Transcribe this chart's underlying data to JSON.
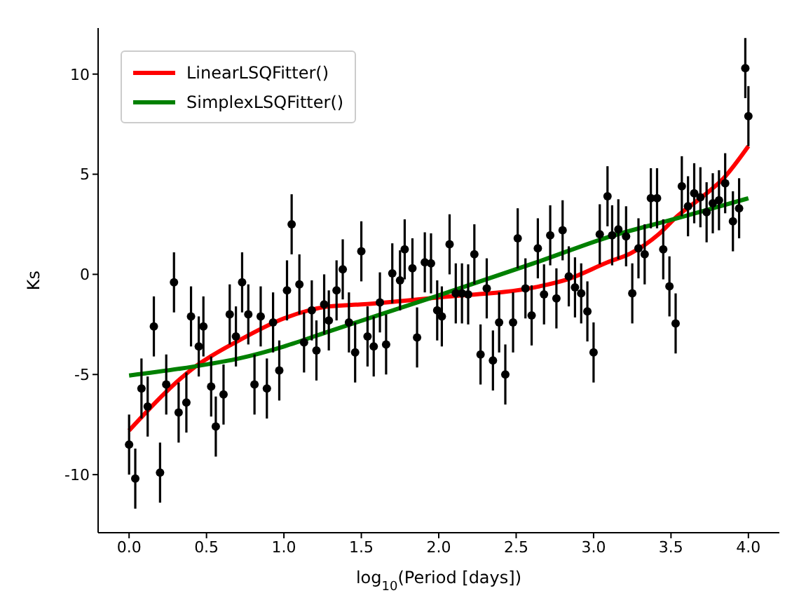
{
  "chart_data": {
    "type": "scatter",
    "xlabel": "log$_{10}$(Period [days])",
    "ylabel": "Ks",
    "xlim": [
      -0.2,
      4.2
    ],
    "ylim": [
      -12.9,
      12.3
    ],
    "xticks": [
      {
        "value": 0,
        "label": "0.0"
      },
      {
        "value": 0.5,
        "label": "0.5"
      },
      {
        "value": 1,
        "label": "1.0"
      },
      {
        "value": 1.5,
        "label": "1.5"
      },
      {
        "value": 2,
        "label": "2.0"
      },
      {
        "value": 2.5,
        "label": "2.5"
      },
      {
        "value": 3,
        "label": "3.0"
      },
      {
        "value": 3.5,
        "label": "3.5"
      },
      {
        "value": 4,
        "label": "4.0"
      }
    ],
    "yticks": [
      -10,
      -5,
      0,
      5,
      10
    ],
    "grid": false,
    "legend": "top left",
    "series": [
      {
        "marker": "circle",
        "color": "#000000",
        "x": [
          0.0,
          0.04,
          0.08,
          0.12,
          0.16,
          0.2,
          0.24,
          0.29,
          0.32,
          0.37,
          0.4,
          0.45,
          0.48,
          0.53,
          0.56,
          0.61,
          0.65,
          0.69,
          0.73,
          0.77,
          0.81,
          0.85,
          0.89,
          0.93,
          0.97,
          1.02,
          1.05,
          1.1,
          1.13,
          1.18,
          1.21,
          1.26,
          1.29,
          1.34,
          1.38,
          1.42,
          1.46,
          1.5,
          1.54,
          1.58,
          1.62,
          1.66,
          1.7,
          1.75,
          1.78,
          1.83,
          1.86,
          1.91,
          1.95,
          1.99,
          2.02,
          2.07,
          2.11,
          2.15,
          2.19,
          2.23,
          2.27,
          2.31,
          2.35,
          2.39,
          2.43,
          2.48,
          2.51,
          2.56,
          2.6,
          2.64,
          2.68,
          2.72,
          2.76,
          2.8,
          2.84,
          2.88,
          2.92,
          2.96,
          3.0,
          3.04,
          3.09,
          3.12,
          3.16,
          3.21,
          3.25,
          3.29,
          3.33,
          3.37,
          3.41,
          3.45,
          3.49,
          3.53,
          3.57,
          3.61,
          3.65,
          3.69,
          3.73,
          3.77,
          3.81,
          3.85,
          3.9,
          3.94,
          3.98,
          4.0
        ],
        "values": [
          -8.5,
          -10.2,
          -5.7,
          -6.6,
          -2.6,
          -9.9,
          -5.5,
          -0.4,
          -6.9,
          -6.4,
          -2.1,
          -3.6,
          -2.6,
          -5.6,
          -7.6,
          -6.0,
          -2.0,
          -3.1,
          -0.4,
          -2.0,
          -5.5,
          -2.1,
          -5.7,
          -2.4,
          -4.8,
          -0.8,
          2.5,
          -0.5,
          -3.4,
          -1.8,
          -3.8,
          -1.5,
          -2.3,
          -0.8,
          0.25,
          -2.4,
          -3.9,
          1.15,
          -3.1,
          -3.6,
          -1.4,
          -3.5,
          0.05,
          -0.3,
          1.25,
          0.3,
          -3.15,
          0.6,
          0.55,
          -1.8,
          -2.1,
          1.5,
          -0.95,
          -0.95,
          -1.0,
          1.0,
          -4.0,
          -0.7,
          -4.3,
          -2.4,
          -5.0,
          -2.4,
          1.8,
          -0.7,
          -2.05,
          1.3,
          -1.0,
          1.95,
          -1.2,
          2.2,
          -0.1,
          -0.65,
          -0.95,
          -1.85,
          -3.9,
          2.0,
          3.9,
          1.95,
          2.25,
          1.9,
          -0.95,
          1.3,
          1.0,
          3.8,
          3.8,
          1.25,
          -0.6,
          -2.45,
          4.4,
          3.4,
          4.05,
          3.85,
          3.1,
          3.55,
          3.7,
          4.55,
          2.65,
          3.3,
          10.3,
          7.9
        ],
        "errors": [
          1.5,
          1.5,
          1.5,
          1.5,
          1.5,
          1.5,
          1.5,
          1.5,
          1.5,
          1.5,
          1.5,
          1.5,
          1.5,
          1.5,
          1.5,
          1.5,
          1.5,
          1.5,
          1.5,
          1.5,
          1.5,
          1.5,
          1.5,
          1.5,
          1.5,
          1.5,
          1.5,
          1.5,
          1.5,
          1.5,
          1.5,
          1.5,
          1.5,
          1.5,
          1.5,
          1.5,
          1.5,
          1.5,
          1.5,
          1.5,
          1.5,
          1.5,
          1.5,
          1.5,
          1.5,
          1.5,
          1.5,
          1.5,
          1.5,
          1.5,
          1.5,
          1.5,
          1.5,
          1.5,
          1.5,
          1.5,
          1.5,
          1.5,
          1.5,
          1.5,
          1.5,
          1.5,
          1.5,
          1.5,
          1.5,
          1.5,
          1.5,
          1.5,
          1.5,
          1.5,
          1.5,
          1.5,
          1.5,
          1.5,
          1.5,
          1.5,
          1.5,
          1.5,
          1.5,
          1.5,
          1.5,
          1.5,
          1.5,
          1.5,
          1.5,
          1.5,
          1.5,
          1.5,
          1.5,
          1.5,
          1.5,
          1.5,
          1.5,
          1.5,
          1.5,
          1.5,
          1.5,
          1.5,
          1.5,
          1.5
        ]
      },
      {
        "type": "line",
        "marker": "none",
        "name": "LinearLSQFitter()",
        "color": "#ff0000",
        "x": [
          0,
          0.42,
          0.71,
          1.0,
          1.29,
          1.5,
          2.0,
          2.65,
          2.83,
          3.09,
          3.24,
          3.42,
          3.54,
          3.69,
          3.84,
          4.0
        ],
        "values": [
          -7.8,
          -4.65,
          -3.3,
          -2.2,
          -1.6,
          -1.5,
          -1.15,
          -0.6,
          -0.25,
          0.6,
          1.05,
          2.0,
          2.9,
          3.8,
          4.8,
          6.4
        ]
      },
      {
        "type": "line",
        "marker": "none",
        "name": "SimplexLSQFitter()",
        "color": "#008000",
        "x": [
          0,
          0.42,
          0.71,
          1.0,
          1.29,
          1.98,
          2.65,
          3.09,
          3.54,
          4.0
        ],
        "values": [
          -5.05,
          -4.6,
          -4.2,
          -3.6,
          -2.85,
          -1.1,
          0.65,
          1.85,
          2.8,
          3.8
        ]
      }
    ]
  }
}
